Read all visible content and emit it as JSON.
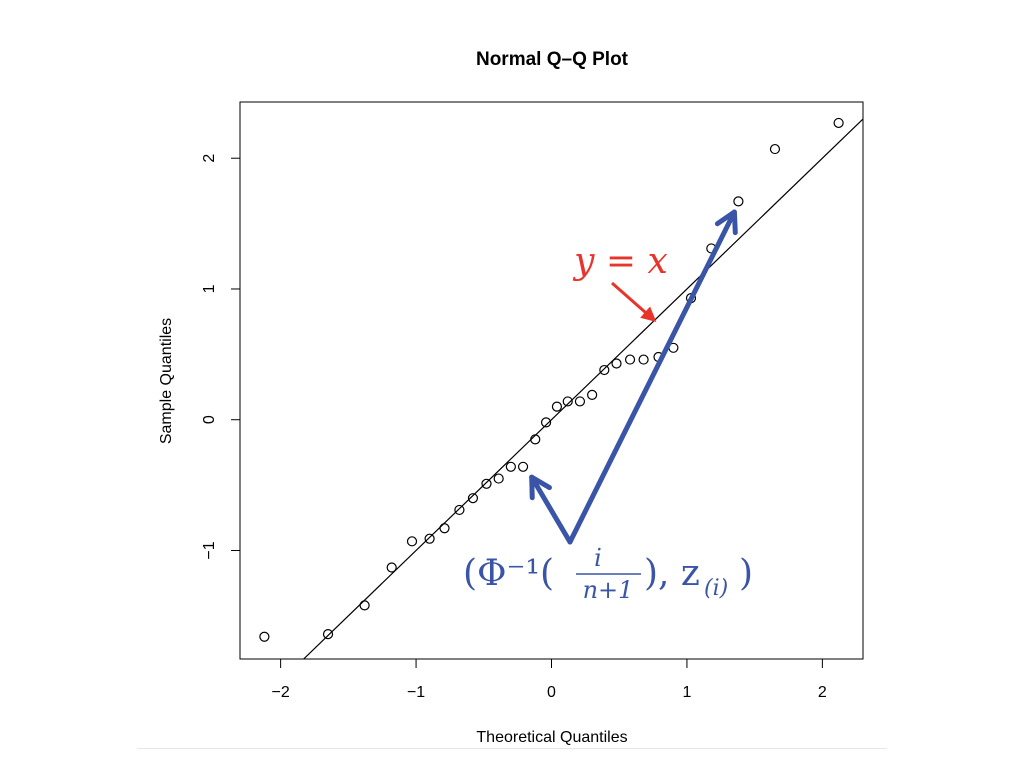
{
  "chart_data": {
    "type": "scatter",
    "title": "Normal Q–Q Plot",
    "xlabel": "Theoretical Quantiles",
    "ylabel": "Sample Quantiles",
    "xlim": [
      -2.3,
      2.3
    ],
    "ylim": [
      -1.83,
      2.43
    ],
    "xticks": [
      -2,
      -1,
      0,
      1,
      2
    ],
    "xtick_labels": [
      "−2",
      "−1",
      "0",
      "1",
      "2"
    ],
    "yticks": [
      -1,
      0,
      1,
      2
    ],
    "ytick_labels": [
      "−1",
      "0",
      "1",
      "2"
    ],
    "grid": false,
    "points": {
      "x": [
        -2.12,
        -1.65,
        -1.38,
        -1.18,
        -1.03,
        -0.9,
        -0.79,
        -0.68,
        -0.58,
        -0.48,
        -0.39,
        -0.3,
        -0.21,
        -0.12,
        -0.04,
        0.04,
        0.12,
        0.21,
        0.3,
        0.39,
        0.48,
        0.58,
        0.68,
        0.79,
        0.9,
        1.03,
        1.18,
        1.38,
        1.65,
        2.12
      ],
      "y": [
        -1.66,
        -1.64,
        -1.42,
        -1.13,
        -0.93,
        -0.91,
        -0.83,
        -0.69,
        -0.6,
        -0.49,
        -0.45,
        -0.36,
        -0.36,
        -0.15,
        -0.02,
        0.1,
        0.14,
        0.14,
        0.19,
        0.38,
        0.43,
        0.46,
        0.46,
        0.48,
        0.55,
        0.93,
        1.31,
        1.67,
        2.07,
        2.27
      ]
    },
    "reference_line": {
      "label": "y = x",
      "points": [
        [
          -1.83,
          -1.83
        ],
        [
          2.3,
          2.3
        ]
      ]
    },
    "annotations": {
      "line_label": {
        "text": "y = x",
        "color": "#e8342a"
      },
      "point_label": {
        "text_before": "(Φ⁻¹(",
        "fraction_numerator": "i",
        "fraction_denominator": "n+1",
        "text_after": "), z",
        "subscript": "(i)",
        "text_close": ")",
        "color": "#3a55a8",
        "arrow_targets": [
          [
            -0.18,
            -0.38
          ],
          [
            1.38,
            1.65
          ]
        ]
      }
    }
  }
}
